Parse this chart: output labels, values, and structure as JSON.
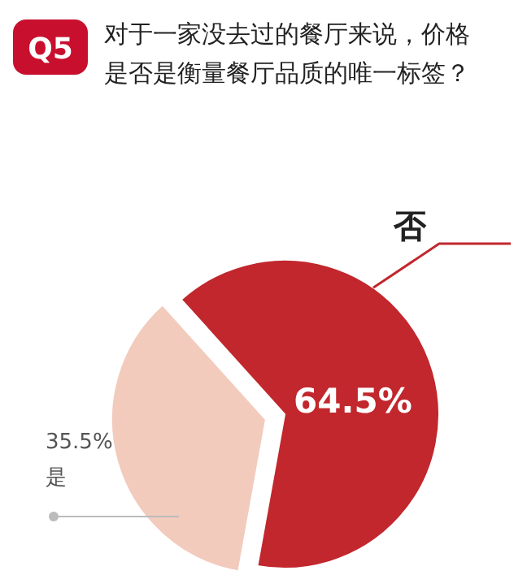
{
  "chart_data": {
    "type": "pie",
    "title": "对于一家没去过的餐厅来说，价格是否是衡量餐厅品质的唯一标签？",
    "annotations": [
      "Q5"
    ],
    "categories": [
      "否",
      "是"
    ],
    "values": [
      64.5,
      35.5
    ],
    "colors": [
      "#c1272d",
      "#f2cbbd"
    ],
    "value_labels": [
      "64.5%",
      "35.5%"
    ]
  }
}
